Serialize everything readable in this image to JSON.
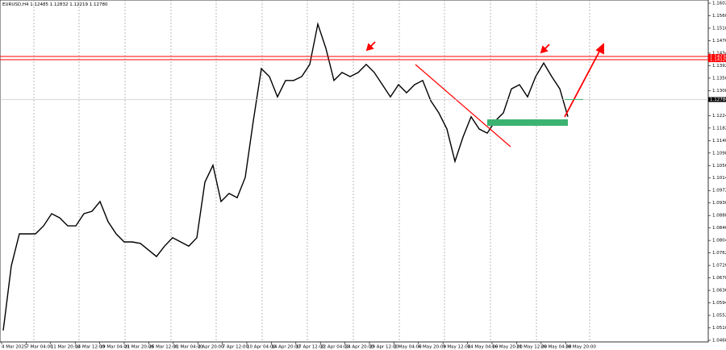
{
  "chart_data": {
    "type": "line",
    "symbol": "EURUSD,H4",
    "ohlc": [
      "1.12485",
      "1.12832",
      "1.12219",
      "1.12780"
    ],
    "color": "#000000",
    "values": [
      1.0501,
      1.0718,
      1.0826,
      1.0826,
      1.0826,
      1.0853,
      1.0894,
      1.088,
      1.0853,
      1.0853,
      1.0894,
      1.0902,
      1.0935,
      1.0867,
      1.0826,
      1.0799,
      1.0799,
      1.0794,
      1.0772,
      1.075,
      1.0785,
      1.0813,
      1.0799,
      1.0785,
      1.0813,
      1.1,
      1.1057,
      1.0935,
      1.0962,
      1.0948,
      1.1016,
      1.1206,
      1.1382,
      1.1355,
      1.1287,
      1.1342,
      1.1342,
      1.1355,
      1.1396,
      1.1532,
      1.145,
      1.1342,
      1.1369,
      1.1355,
      1.1369,
      1.1396,
      1.1369,
      1.1328,
      1.1287,
      1.1328,
      1.1301,
      1.1328,
      1.1342,
      1.1274,
      1.1233,
      1.1179,
      1.107,
      1.1152,
      1.122,
      1.1179,
      1.1165,
      1.1206,
      1.1233,
      1.1314,
      1.1328,
      1.1287,
      1.1355,
      1.1401,
      1.1355,
      1.1314,
      1.122
    ],
    "xlabels": [
      "4 Mar 2025",
      "7 Mar 04:00",
      "11 Mar 20:00",
      "14 Mar 12:00",
      "19 Mar 04:00",
      "21 Mar 20:00",
      "26 Mar 12:00",
      "31 Mar 04:00",
      "2 Apr 20:00",
      "7 Apr 12:00",
      "10 Apr 04:00",
      "14 Apr 20:00",
      "17 Apr 12:00",
      "22 Apr 04:00",
      "24 Apr 20:00",
      "29 Apr 12:00",
      "2 May 04:00",
      "6 May 20:00",
      "9 May 12:00",
      "14 May 04:00",
      "16 May 20:00",
      "21 May 12:00",
      "26 May 04:00",
      "28 May 20:00"
    ],
    "ylim": [
      1.0468,
      1.1602
    ],
    "yticks": [
      {
        "value": 1.1602,
        "label": "1.16020"
      },
      {
        "value": 1.156,
        "label": "1.15600"
      },
      {
        "value": 1.1518,
        "label": "1.15180"
      },
      {
        "value": 1.1476,
        "label": "1.14760"
      },
      {
        "value": 1.1434,
        "label": "1.14340"
      },
      {
        "value": 1.1392,
        "label": "1.13920"
      },
      {
        "value": 1.135,
        "label": "1.13500"
      },
      {
        "value": 1.1308,
        "label": "1.13080"
      },
      {
        "value": 1.1224,
        "label": "1.12240"
      },
      {
        "value": 1.1182,
        "label": "1.11820"
      },
      {
        "value": 1.114,
        "label": "1.11400"
      },
      {
        "value": 1.1098,
        "label": "1.10980"
      },
      {
        "value": 1.1056,
        "label": "1.10560"
      },
      {
        "value": 1.1014,
        "label": "1.10140"
      },
      {
        "value": 1.0972,
        "label": "1.09720"
      },
      {
        "value": 1.093,
        "label": "1.09300"
      },
      {
        "value": 1.0888,
        "label": "1.08880"
      },
      {
        "value": 1.0846,
        "label": "1.08460"
      },
      {
        "value": 1.0804,
        "label": "1.08040"
      },
      {
        "value": 1.0762,
        "label": "1.07620"
      },
      {
        "value": 1.072,
        "label": "1.07200"
      },
      {
        "value": 1.0678,
        "label": "1.06780"
      },
      {
        "value": 1.0636,
        "label": "1.06360"
      },
      {
        "value": 1.0594,
        "label": "1.05940"
      },
      {
        "value": 1.0552,
        "label": "1.05520"
      },
      {
        "value": 1.051,
        "label": "1.05100"
      },
      {
        "value": 1.0468,
        "label": "1.04680"
      }
    ],
    "levels": [
      {
        "value": 1.1423,
        "label": "1.14230",
        "color": "#ff0000"
      },
      {
        "value": 1.1412,
        "label": "1.14120",
        "color": "#ff0000"
      }
    ],
    "current_price": {
      "value": 1.1278,
      "label": "1.12780"
    }
  }
}
